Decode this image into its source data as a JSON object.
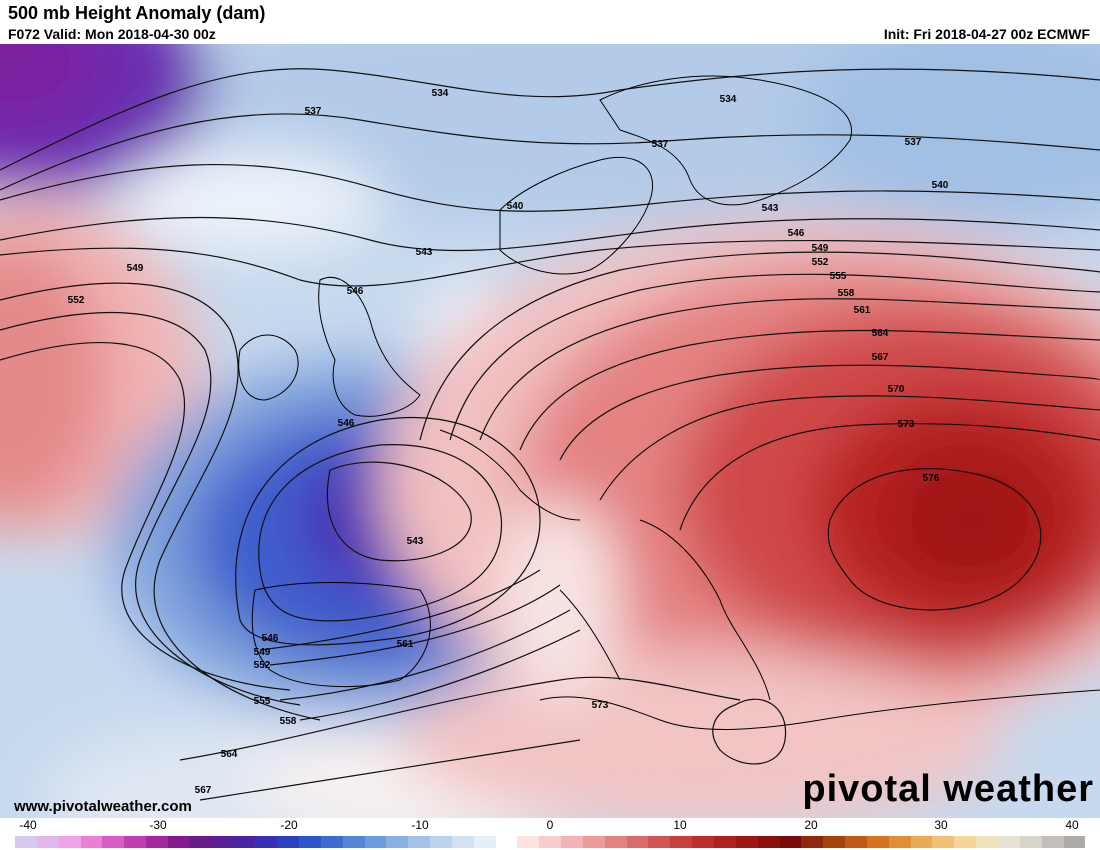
{
  "header": {
    "title": "500 mb Height Anomaly (dam)",
    "valid": "F072 Valid: Mon 2018-04-30 00z",
    "init": "Init: Fri 2018-04-27 00z ECMWF"
  },
  "footer": {
    "website": "www.pivotalweather.com",
    "brand": "pivotal weather"
  },
  "contour_labels": [
    "534",
    "534",
    "537",
    "537",
    "537",
    "540",
    "540",
    "543",
    "543",
    "546",
    "549",
    "552",
    "555",
    "558",
    "561",
    "564",
    "567",
    "570",
    "573",
    "576",
    "549",
    "552",
    "546",
    "546",
    "543",
    "546",
    "549",
    "552",
    "555",
    "558",
    "561",
    "564",
    "567",
    "573"
  ],
  "colorbar": {
    "ticks": [
      "-40",
      "-30",
      "-20",
      "-10",
      "0",
      "10",
      "20",
      "30",
      "40"
    ],
    "colors": [
      "#d7c8f0",
      "#e4b6ee",
      "#f0a3e6",
      "#ea7fd6",
      "#d85cc5",
      "#c23eb0",
      "#a3289e",
      "#86198f",
      "#6a1a8a",
      "#5a1e95",
      "#4b22a6",
      "#3a2db8",
      "#2b3fc4",
      "#2a55cc",
      "#3a6cd2",
      "#5286d8",
      "#6c9cdd",
      "#88b0e2",
      "#a3c2e8",
      "#bcd3ee",
      "#d3e2f3",
      "#e6eff8",
      "#ffffff",
      "#fbe3e3",
      "#f7cccc",
      "#f2b4b4",
      "#ec9b9b",
      "#e48282",
      "#dc6a6a",
      "#d35454",
      "#c93f3f",
      "#be2c2c",
      "#b01e1e",
      "#a01414",
      "#8c0e0e",
      "#7a0a0a",
      "#8c2a0a",
      "#a6420c",
      "#c05a14",
      "#d47420",
      "#e28e34",
      "#ec aa52",
      "#f2c274",
      "#f4d69a",
      "#f0e2bc",
      "#e8e2d2",
      "#d8d4cc",
      "#c4bfba",
      "#aeaaa6"
    ]
  },
  "legend_colors": {
    "negative_strong": "#4b22a6",
    "negative": "#5286d8",
    "neutral": "#ffffff",
    "positive": "#dc6a6a",
    "positive_strong": "#a01414"
  }
}
